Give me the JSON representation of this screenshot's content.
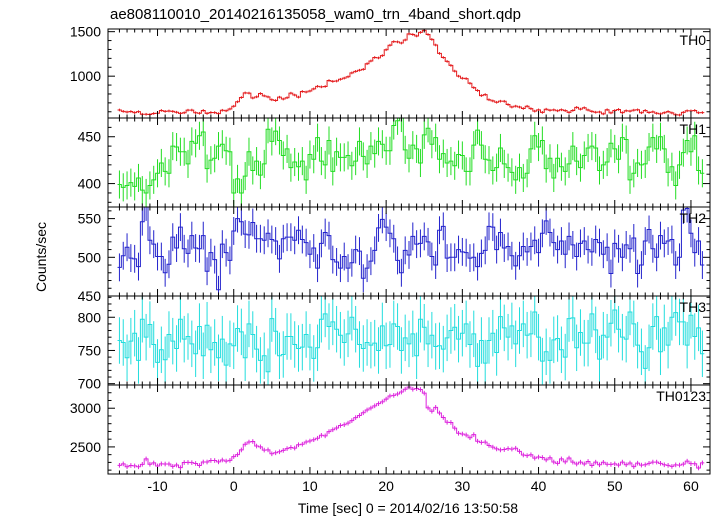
{
  "title": "ae808110010_20140216135058_wam0_trn_4band_short.qdp",
  "xlabel": "Time [sec] 0 = 2014/02/16 13:50:58",
  "ylabel": "Counts/sec",
  "chart_data": {
    "type": "line",
    "style": "step histogram with error bars, 5 stacked panels sharing the time axis",
    "title": "ae808110010_20140216135058_wam0_trn_4band_short.qdp",
    "xlabel": "Time [sec] 0 = 2014/02/16 13:50:58",
    "ylabel": "Counts/sec",
    "xlim": [
      -16.5,
      62.5
    ],
    "xticks": [
      -10,
      0,
      10,
      20,
      30,
      40,
      50,
      60
    ],
    "bin_width": 0.5,
    "x_start": -15,
    "x_end": 61.5,
    "panels": [
      {
        "name": "TH0",
        "color": "#e41a1c",
        "ylim": [
          530,
          1530
        ],
        "yticks": [
          1000,
          1500
        ],
        "error": 15,
        "values": [
          620,
          605,
          597,
          603,
          591,
          601,
          572,
          572,
          570,
          581,
          583,
          615,
          605,
          609,
          604,
          595,
          582,
          589,
          618,
          619,
          589,
          583,
          615,
          582,
          592,
          591,
          579,
          617,
          611,
          631,
          662,
          712,
          760,
          812,
          810,
          755,
          768,
          805,
          779,
          767,
          735,
          727,
          764,
          743,
          758,
          809,
          788,
          765,
          828,
          822,
          833,
          857,
          886,
          880,
          884,
          951,
          942,
          945,
          965,
          978,
          993,
          1037,
          1054,
          1067,
          1077,
          1140,
          1171,
          1210,
          1205,
          1231,
          1297,
          1348,
          1388,
          1385,
          1372,
          1407,
          1475,
          1468,
          1452,
          1492,
          1515,
          1468,
          1413,
          1350,
          1256,
          1210,
          1166,
          1121,
          1057,
          1000,
          977,
          973,
          920,
          871,
          839,
          782,
          793,
          735,
          722,
          707,
          719,
          718,
          681,
          653,
          663,
          653,
          637,
          662,
          635,
          607,
          621,
          593,
          629,
          617,
          621,
          611,
          622,
          613,
          593,
          615,
          649,
          630,
          645,
          620,
          604,
          595,
          597,
          577,
          623,
          588,
          614,
          626,
          590,
          611,
          607,
          618,
          622,
          589,
          615,
          592,
          599,
          583,
          576,
          589,
          602,
          587,
          567,
          563,
          593,
          611,
          610,
          615,
          589,
          591
        ]
      },
      {
        "name": "TH1",
        "color": "#22dd22",
        "ylim": [
          375,
          470
        ],
        "yticks": [
          400,
          450
        ],
        "error": 15,
        "values": [
          399,
          396,
          398,
          401,
          397,
          406,
          393,
          390,
          398,
          404,
          411,
          422,
          413,
          411,
          440,
          439,
          434,
          434,
          421,
          445,
          443,
          451,
          455,
          416,
          425,
          427,
          440,
          442,
          435,
          434,
          390,
          405,
          390,
          408,
          434,
          414,
          424,
          409,
          421,
          458,
          445,
          456,
          446,
          430,
          437,
          417,
          423,
          418,
          424,
          404,
          431,
          426,
          449,
          424,
          420,
          446,
          413,
          434,
          428,
          428,
          430,
          419,
          424,
          445,
          429,
          421,
          440,
          432,
          445,
          442,
          435,
          435,
          462,
          467,
          470,
          436,
          427,
          441,
          437,
          422,
          452,
          459,
          442,
          449,
          426,
          432,
          422,
          424,
          419,
          431,
          430,
          413,
          413,
          441,
          457,
          441,
          426,
          425,
          414,
          417,
          438,
          421,
          417,
          412,
          404,
          417,
          406,
          411,
          437,
          451,
          439,
          446,
          416,
          427,
          406,
          427,
          418,
          413,
          421,
          440,
          424,
          417,
          430,
          438,
          440,
          438,
          414,
          420,
          423,
          443,
          437,
          426,
          449,
          447,
          404,
          411,
          422,
          420,
          421,
          439,
          449,
          437,
          450,
          437,
          412,
          418,
          398,
          420,
          433,
          446,
          434,
          451,
          414,
          411
        ]
      },
      {
        "name": "TH2",
        "color": "#2222cc",
        "ylim": [
          450,
          565
        ],
        "yticks": [
          450,
          500,
          550
        ],
        "error": 18,
        "values": [
          487,
          502,
          513,
          499,
          498,
          488,
          546,
          565,
          522,
          517,
          501,
          501,
          480,
          491,
          526,
          512,
          539,
          511,
          505,
          528,
          512,
          511,
          528,
          482,
          506,
          497,
          458,
          517,
          506,
          496,
          534,
          550,
          546,
          530,
          529,
          545,
          524,
          524,
          522,
          531,
          523,
          521,
          498,
          524,
          526,
          526,
          522,
          535,
          523,
          519,
          504,
          512,
          486,
          518,
          532,
          528,
          497,
          494,
          486,
          501,
          486,
          493,
          510,
          508,
          473,
          486,
          495,
          509,
          538,
          549,
          539,
          531,
          524,
          496,
          480,
          509,
          503,
          527,
          517,
          518,
          527,
          520,
          501,
          490,
          535,
          540,
          499,
          500,
          500,
          510,
          507,
          506,
          499,
          500,
          488,
          505,
          509,
          540,
          539,
          510,
          532,
          512,
          514,
          502,
          489,
          502,
          514,
          507,
          514,
          522,
          506,
          531,
          547,
          532,
          519,
          510,
          521,
          504,
          527,
          516,
          501,
          518,
          521,
          510,
          507,
          523,
          519,
          504,
          513,
          479,
          518,
          511,
          500,
          516,
          511,
          525,
          479,
          490,
          521,
          536,
          511,
          500,
          528,
          518,
          521,
          523,
          490,
          500,
          561,
          563,
          531,
          506,
          521,
          490
        ]
      },
      {
        "name": "TH3",
        "color": "#22dddd",
        "ylim": [
          698,
          832
        ],
        "yticks": [
          700,
          750,
          800
        ],
        "error": 35,
        "values": [
          765,
          762,
          739,
          764,
          776,
          735,
          797,
          770,
          789,
          759,
          732,
          751,
          736,
          774,
          764,
          753,
          797,
          767,
          771,
          760,
          745,
          786,
          742,
          788,
          751,
          762,
          739,
          767,
          728,
          760,
          757,
          783,
          778,
          739,
          790,
          774,
          752,
          735,
          742,
          718,
          798,
          779,
          742,
          744,
          771,
          771,
          759,
          753,
          755,
          774,
          755,
          738,
          754,
          797,
          805,
          786,
          793,
          782,
          773,
          762,
          775,
          800,
          782,
          759,
          753,
          762,
          758,
          761,
          750,
          787,
          757,
          759,
          790,
          786,
          750,
          769,
          760,
          775,
          742,
          797,
          785,
          760,
          773,
          756,
          757,
          752,
          769,
          780,
          785,
          767,
          776,
          790,
          759,
          775,
          726,
          765,
          731,
          765,
          776,
          747,
          801,
          784,
          770,
          787,
          760,
          780,
          790,
          773,
          775,
          808,
          770,
          734,
          748,
          735,
          766,
          768,
          751,
          740,
          798,
          799,
          754,
          777,
          761,
          761,
          805,
          781,
          737,
          773,
          770,
          791,
          811,
          782,
          770,
          767,
          808,
          790,
          758,
          748,
          723,
          754,
          786,
          801,
          748,
          784,
          758,
          800,
          807,
          793,
          793,
          758,
          803,
          771,
          784,
          745
        ]
      },
      {
        "name": "TH0123",
        "color": "#dd22dd",
        "ylim": [
          2150,
          3300
        ],
        "yticks": [
          2500,
          3000
        ],
        "error": 30,
        "values": [
          2262,
          2281,
          2244,
          2260,
          2255,
          2243,
          2275,
          2345,
          2276,
          2293,
          2254,
          2281,
          2279,
          2279,
          2248,
          2266,
          2232,
          2298,
          2300,
          2297,
          2286,
          2260,
          2305,
          2305,
          2325,
          2324,
          2307,
          2331,
          2317,
          2326,
          2375,
          2400,
          2461,
          2535,
          2563,
          2570,
          2511,
          2501,
          2459,
          2462,
          2411,
          2424,
          2437,
          2455,
          2478,
          2493,
          2485,
          2528,
          2535,
          2563,
          2576,
          2593,
          2612,
          2650,
          2643,
          2698,
          2722,
          2745,
          2777,
          2787,
          2807,
          2840,
          2879,
          2906,
          2941,
          2977,
          3002,
          3031,
          3059,
          3082,
          3117,
          3158,
          3166,
          3184,
          3209,
          3245,
          3274,
          3245,
          3254,
          3242,
          3195,
          3004,
          2961,
          3011,
          2938,
          2880,
          2818,
          2816,
          2742,
          2676,
          2667,
          2654,
          2619,
          2659,
          2574,
          2558,
          2562,
          2519,
          2497,
          2474,
          2461,
          2466,
          2478,
          2472,
          2483,
          2442,
          2396,
          2387,
          2399,
          2355,
          2369,
          2363,
          2332,
          2360,
          2305,
          2288,
          2345,
          2306,
          2356,
          2303,
          2279,
          2303,
          2280,
          2312,
          2260,
          2303,
          2269,
          2301,
          2276,
          2274,
          2281,
          2264,
          2304,
          2270,
          2292,
          2245,
          2290,
          2265,
          2269,
          2288,
          2304,
          2304,
          2288,
          2269,
          2262,
          2248,
          2268,
          2265,
          2277,
          2316,
          2284,
          2283,
          2228,
          2294
        ]
      }
    ]
  }
}
